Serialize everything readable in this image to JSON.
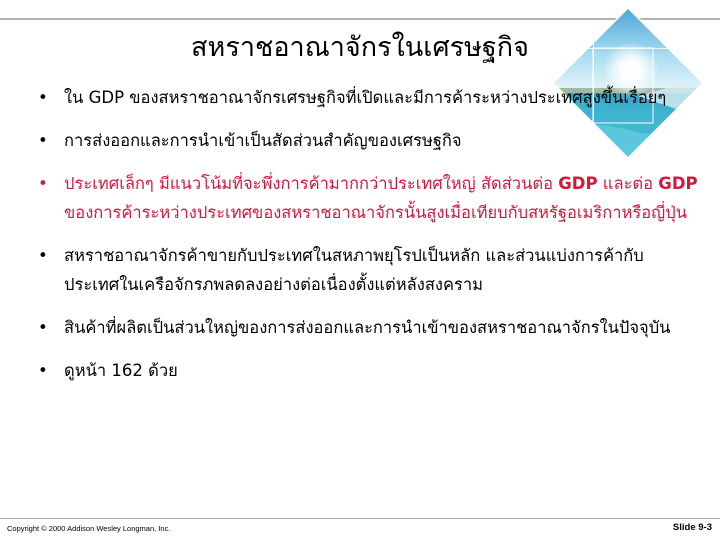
{
  "slide": {
    "title": "สหราชอาณาจักรในเศรษฐกิจ",
    "bullets": [
      {
        "parts": [
          {
            "text": "• "
          },
          {
            "text": "ใน GDP ของสหราชอาณาจักรเศรษฐกิจที่เปิดและมีการค้าระหว่างประเทศสูงขึ้นเรื่อยๆ"
          }
        ]
      },
      {
        "parts": [
          {
            "text": "• "
          },
          {
            "text": "การส่งออกและการนำเข้าเป็นสัดส่วนสำคัญของเศรษฐกิจ"
          }
        ]
      },
      {
        "parts": [
          {
            "text": "• "
          },
          {
            "text": "ประเทศเล็กๆ มีแนวโน้มที่จะพึ่งการค้ามากกว่าประเทศใหญ่ สัดส่วนต่อ "
          },
          {
            "text": "GDP",
            "strong": true
          },
          {
            "text": " และต่อ "
          },
          {
            "text": "GDP",
            "strong": true
          },
          {
            "text": " ของการค้าระหว่างประเทศของสหราชอาณาจักรนั้นสูงเมื่อเทียบกับสหรัฐอเมริกาหรือญี่ปุ่น"
          }
        ]
      },
      {
        "parts": [
          {
            "text": "• "
          },
          {
            "text": "สหราชอาณาจักรค้าขายกับประเทศในสหภาพยุโรปเป็นหลัก และส่วนแบ่งการค้ากับประเทศในเครือจักรภพลดลงอย่างต่อเนื่องตั้งแต่หลังสงคราม"
          }
        ]
      },
      {
        "parts": [
          {
            "text": "• "
          },
          {
            "text": "สินค้าที่ผลิตเป็นส่วนใหญ่ของการส่งออกและการนำเข้าของสหราชอาณาจักรในปัจจุบัน"
          }
        ]
      },
      {
        "parts": [
          {
            "text": "• "
          },
          {
            "text": "ดูหน้า 162 ด้วย"
          }
        ]
      }
    ]
  },
  "footer": {
    "copyright": "Copyright © 2000 Addison Wesley Longman, Inc.",
    "slide_number": "Slide 9-3"
  },
  "colors": {
    "accent_red": "#d4183b",
    "rule_gray": "#b3b3b3"
  },
  "images": {
    "decorative_photo": "beach-diamond-photo"
  }
}
